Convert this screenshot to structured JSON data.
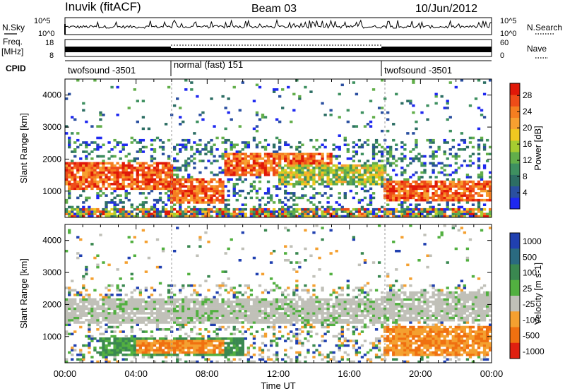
{
  "header": {
    "station": "Inuvik (fitACF)",
    "beam": "Beam 03",
    "date": "10/Jun/2012"
  },
  "top_panels": {
    "nsky_label": "N.Sky",
    "nsearch_label": "N.Search",
    "nsky_ticks": [
      "10^5",
      "10^0"
    ],
    "nsearch_ticks": [
      "10^5",
      "10^0"
    ],
    "freq_label_1": "Freq.",
    "freq_label_2": "[MHz]",
    "freq_ticks": [
      "18",
      "8"
    ],
    "nave_label": "Nave",
    "nave_ticks": [
      "60",
      "0"
    ],
    "cpid_label": "CPID",
    "cpid_segments": [
      {
        "start": 0,
        "end": 6,
        "label": "twofsound -3501"
      },
      {
        "start": 6,
        "end": 18,
        "label": "normal (fast) 151"
      },
      {
        "start": 18,
        "end": 24,
        "label": "twofsound -3501"
      }
    ]
  },
  "chart_data": [
    {
      "type": "heatmap",
      "name": "power",
      "ylabel": "Slant Range [km]",
      "xlabel": "",
      "xlim": [
        0,
        24
      ],
      "ylim": [
        180,
        4500
      ],
      "yticks": [
        1000,
        2000,
        3000,
        4000
      ],
      "colorbar": {
        "label": "Power [dB]",
        "ticks": [
          "4",
          "8",
          "12",
          "16",
          "20",
          "24",
          "28"
        ],
        "tick_values": [
          4,
          8,
          12,
          16,
          20,
          24,
          28
        ],
        "range": [
          0,
          31
        ],
        "colors": [
          "#1e28f0",
          "#2a4fa0",
          "#2d6e64",
          "#3e9060",
          "#62ae4a",
          "#a6cc30",
          "#f0c820",
          "#f7a030",
          "#f57e20",
          "#ee4c18",
          "#e01808"
        ]
      },
      "bands": [
        {
          "t0": 0,
          "t1": 6,
          "r0": 1050,
          "r1": 1900,
          "level": "high"
        },
        {
          "t0": 6,
          "t1": 9,
          "r0": 600,
          "r1": 1400,
          "level": "high"
        },
        {
          "t0": 9,
          "t1": 15,
          "r0": 1500,
          "r1": 2200,
          "level": "high"
        },
        {
          "t0": 12,
          "t1": 18,
          "r0": 1200,
          "r1": 1800,
          "level": "mid"
        },
        {
          "t0": 18,
          "t1": 24,
          "r0": 700,
          "r1": 1300,
          "level": "high"
        },
        {
          "t0": 0,
          "t1": 24,
          "r0": 200,
          "r1": 500,
          "level": "mix"
        }
      ]
    },
    {
      "type": "heatmap",
      "name": "velocity",
      "ylabel": "Slant Range [km]",
      "xlabel": "Time UT",
      "xlim": [
        0,
        24
      ],
      "ylim": [
        180,
        4500
      ],
      "yticks": [
        1000,
        2000,
        3000,
        4000
      ],
      "xticks": [
        "00:00",
        "04:00",
        "08:00",
        "12:00",
        "16:00",
        "20:00",
        "00:00"
      ],
      "xtick_values": [
        0,
        4,
        8,
        12,
        16,
        20,
        24
      ],
      "colorbar": {
        "label": "Velocity [m s-1]",
        "ticks": [
          "1000",
          "500",
          "100",
          "25",
          "-25",
          "-100",
          "-500",
          "-1000"
        ],
        "colors": [
          "#2040b0",
          "#2a6a80",
          "#3a8850",
          "#52b040",
          "#c0c0b8",
          "#f4a030",
          "#f07010",
          "#e02010"
        ]
      },
      "bands": [
        {
          "t0": 0,
          "t1": 18,
          "r0": 1400,
          "r1": 2200,
          "level": "grey"
        },
        {
          "t0": 2,
          "t1": 10,
          "r0": 400,
          "r1": 1000,
          "level": "green"
        },
        {
          "t0": 4,
          "t1": 9,
          "r0": 500,
          "r1": 900,
          "level": "orange"
        },
        {
          "t0": 18,
          "t1": 24,
          "r0": 400,
          "r1": 1300,
          "level": "orange"
        },
        {
          "t0": 18,
          "t1": 24,
          "r0": 1500,
          "r1": 2400,
          "level": "grey"
        }
      ]
    }
  ]
}
